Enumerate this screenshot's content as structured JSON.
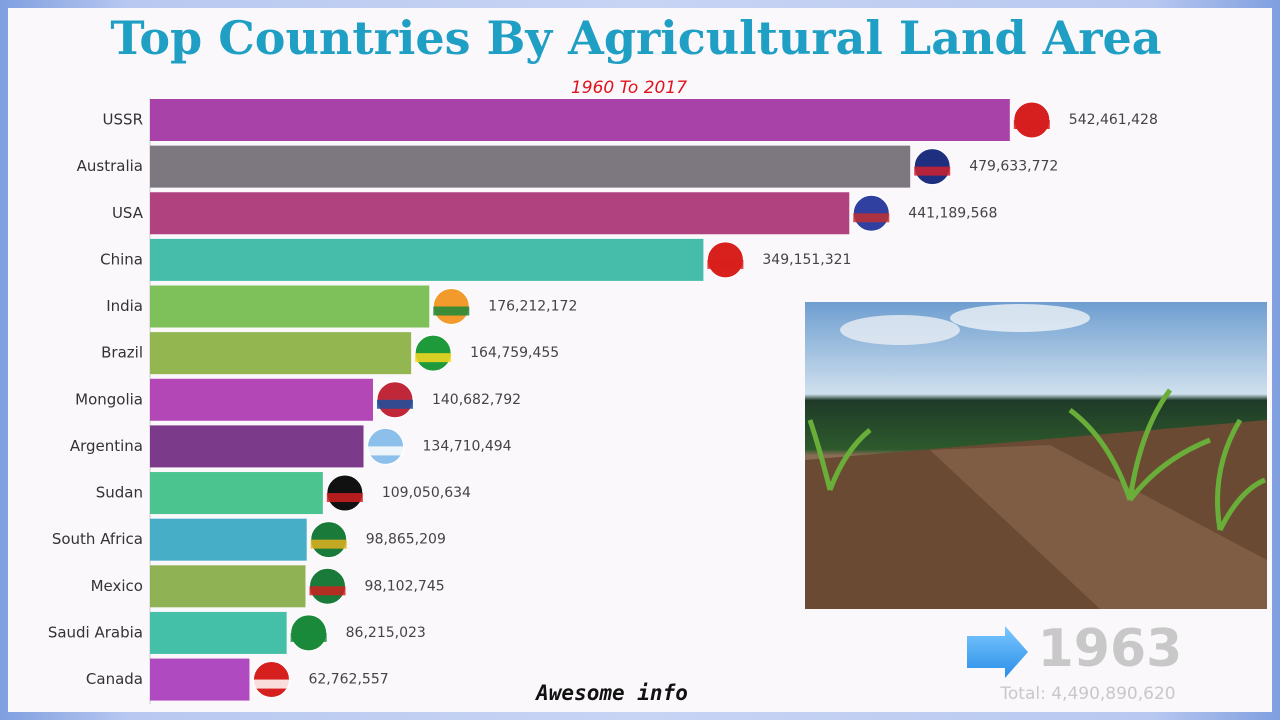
{
  "chart_data": {
    "type": "bar",
    "orientation": "horizontal",
    "title": "Top Countries By Agricultural Land Area",
    "subtitle": "1960 To 2017",
    "categories": [
      "USSR",
      "Australia",
      "USA",
      "China",
      "India",
      "Brazil",
      "Mongolia",
      "Argentina",
      "Sudan",
      "South Africa",
      "Mexico",
      "Saudi Arabia",
      "Canada"
    ],
    "values": [
      542461428,
      479633772,
      441189568,
      349151321,
      176212172,
      164759455,
      140682792,
      134710494,
      109050634,
      98865209,
      98102745,
      86215023,
      62762557
    ],
    "value_labels": [
      "542,461,428",
      "479,633,772",
      "441,189,568",
      "349,151,321",
      "176,212,172",
      "164,759,455",
      "140,682,792",
      "134,710,494",
      "109,050,634",
      "98,865,209",
      "98,102,745",
      "86,215,023",
      "62,762,557"
    ],
    "colors": [
      "#a841a8",
      "#7d7880",
      "#b0427f",
      "#45bdaa",
      "#7ec05a",
      "#93b650",
      "#b347b5",
      "#7c3a8a",
      "#4cc48f",
      "#47aec8",
      "#8fb354",
      "#45c0a8",
      "#b04ac0"
    ],
    "xlim": [
      0,
      600000000
    ]
  },
  "year": "1963",
  "total": "Total: 4,490,890,620",
  "watermark": "Awesome info"
}
